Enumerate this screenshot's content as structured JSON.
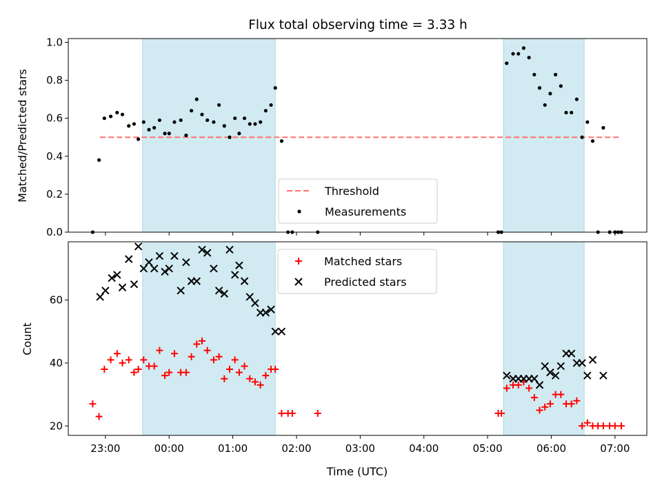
{
  "colors": {
    "span": "#add8e6",
    "threshold": "#ff7070",
    "measurement": "#000000",
    "matched": "#ff0000",
    "predicted": "#000000"
  },
  "chart_data": [
    {
      "type": "scatter",
      "title": "Flux total observing time = 3.33 h",
      "xlabel": "",
      "ylabel": "Matched/Predicted stars",
      "xlim": [
        "22:25",
        "07:30"
      ],
      "ylim": [
        0,
        1.02
      ],
      "yticks": [
        "0.0",
        "0.2",
        "0.4",
        "0.6",
        "0.8",
        "1.0"
      ],
      "xticks": [
        "23:00",
        "00:00",
        "01:00",
        "02:00",
        "03:00",
        "04:00",
        "05:00",
        "06:00",
        "07:00"
      ],
      "x_tick_labels_shown": false,
      "shaded_spans": [
        [
          "23:35",
          "01:40"
        ],
        [
          "05:15",
          "06:31"
        ]
      ],
      "threshold": {
        "name": "Threshold",
        "value": 0.5,
        "x_range": [
          "22:55",
          "07:05"
        ]
      },
      "legend": {
        "position": "lower center",
        "entries": [
          "Threshold",
          "Measurements"
        ]
      },
      "series": [
        {
          "name": "Measurements",
          "points": [
            [
              "22:48",
              0.0
            ],
            [
              "22:54",
              0.38
            ],
            [
              "22:59",
              0.6
            ],
            [
              "23:05",
              0.61
            ],
            [
              "23:11",
              0.63
            ],
            [
              "23:16",
              0.62
            ],
            [
              "23:22",
              0.56
            ],
            [
              "23:27",
              0.57
            ],
            [
              "23:31",
              0.49
            ],
            [
              "23:36",
              0.58
            ],
            [
              "23:41",
              0.54
            ],
            [
              "23:46",
              0.55
            ],
            [
              "23:51",
              0.59
            ],
            [
              "23:56",
              0.52
            ],
            [
              "00:00",
              0.52
            ],
            [
              "00:05",
              0.58
            ],
            [
              "00:11",
              0.59
            ],
            [
              "00:16",
              0.51
            ],
            [
              "00:21",
              0.64
            ],
            [
              "00:26",
              0.7
            ],
            [
              "00:31",
              0.62
            ],
            [
              "00:36",
              0.59
            ],
            [
              "00:42",
              0.58
            ],
            [
              "00:47",
              0.67
            ],
            [
              "00:52",
              0.56
            ],
            [
              "00:57",
              0.5
            ],
            [
              "01:02",
              0.6
            ],
            [
              "01:06",
              0.52
            ],
            [
              "01:11",
              0.6
            ],
            [
              "01:16",
              0.57
            ],
            [
              "01:21",
              0.57
            ],
            [
              "01:26",
              0.58
            ],
            [
              "01:31",
              0.64
            ],
            [
              "01:36",
              0.67
            ],
            [
              "01:40",
              0.76
            ],
            [
              "01:46",
              0.48
            ],
            [
              "01:52",
              0.0
            ],
            [
              "01:56",
              0.0
            ],
            [
              "02:20",
              0.0
            ],
            [
              "05:10",
              0.0
            ],
            [
              "05:13",
              0.0
            ],
            [
              "05:18",
              0.89
            ],
            [
              "05:24",
              0.94
            ],
            [
              "05:29",
              0.94
            ],
            [
              "05:34",
              0.97
            ],
            [
              "05:39",
              0.92
            ],
            [
              "05:44",
              0.83
            ],
            [
              "05:49",
              0.76
            ],
            [
              "05:54",
              0.67
            ],
            [
              "05:59",
              0.73
            ],
            [
              "06:04",
              0.83
            ],
            [
              "06:09",
              0.77
            ],
            [
              "06:14",
              0.63
            ],
            [
              "06:19",
              0.63
            ],
            [
              "06:24",
              0.7
            ],
            [
              "06:29",
              0.5
            ],
            [
              "06:34",
              0.58
            ],
            [
              "06:39",
              0.48
            ],
            [
              "06:44",
              0.0
            ],
            [
              "06:49",
              0.55
            ],
            [
              "06:55",
              0.0
            ],
            [
              "07:00",
              0.0
            ],
            [
              "07:03",
              0.0
            ],
            [
              "07:06",
              0.0
            ]
          ]
        }
      ]
    },
    {
      "type": "scatter",
      "title": "",
      "xlabel": "Time (UTC)",
      "ylabel": "Count",
      "xlim": [
        "22:25",
        "07:30"
      ],
      "ylim": [
        17,
        78.5
      ],
      "yticks": [
        "20",
        "40",
        "60"
      ],
      "xticks": [
        "23:00",
        "00:00",
        "01:00",
        "02:00",
        "03:00",
        "04:00",
        "05:00",
        "06:00",
        "07:00"
      ],
      "shaded_spans": [
        [
          "23:35",
          "01:40"
        ],
        [
          "05:15",
          "06:31"
        ]
      ],
      "legend": {
        "position": "upper center",
        "entries": [
          "Matched stars",
          "Predicted stars"
        ]
      },
      "series": [
        {
          "name": "Matched stars",
          "marker": "+",
          "points": [
            [
              "22:48",
              27
            ],
            [
              "22:54",
              23
            ],
            [
              "22:59",
              38
            ],
            [
              "23:05",
              41
            ],
            [
              "23:11",
              43
            ],
            [
              "23:16",
              40
            ],
            [
              "23:22",
              41
            ],
            [
              "23:27",
              37
            ],
            [
              "23:31",
              38
            ],
            [
              "23:36",
              41
            ],
            [
              "23:41",
              39
            ],
            [
              "23:46",
              39
            ],
            [
              "23:51",
              44
            ],
            [
              "23:56",
              36
            ],
            [
              "00:00",
              37
            ],
            [
              "00:05",
              43
            ],
            [
              "00:11",
              37
            ],
            [
              "00:16",
              37
            ],
            [
              "00:21",
              42
            ],
            [
              "00:26",
              46
            ],
            [
              "00:31",
              47
            ],
            [
              "00:36",
              44
            ],
            [
              "00:42",
              41
            ],
            [
              "00:47",
              42
            ],
            [
              "00:52",
              35
            ],
            [
              "00:57",
              38
            ],
            [
              "01:02",
              41
            ],
            [
              "01:06",
              37
            ],
            [
              "01:11",
              39
            ],
            [
              "01:16",
              35
            ],
            [
              "01:21",
              34
            ],
            [
              "01:26",
              33
            ],
            [
              "01:31",
              36
            ],
            [
              "01:36",
              38
            ],
            [
              "01:40",
              38
            ],
            [
              "01:46",
              24
            ],
            [
              "01:52",
              24
            ],
            [
              "01:56",
              24
            ],
            [
              "02:20",
              24
            ],
            [
              "05:10",
              24
            ],
            [
              "05:13",
              24
            ],
            [
              "05:18",
              32
            ],
            [
              "05:24",
              33
            ],
            [
              "05:29",
              33
            ],
            [
              "05:34",
              34
            ],
            [
              "05:39",
              32
            ],
            [
              "05:44",
              29
            ],
            [
              "05:49",
              25
            ],
            [
              "05:54",
              26
            ],
            [
              "05:59",
              27
            ],
            [
              "06:04",
              30
            ],
            [
              "06:09",
              30
            ],
            [
              "06:14",
              27
            ],
            [
              "06:19",
              27
            ],
            [
              "06:24",
              28
            ],
            [
              "06:29",
              20
            ],
            [
              "06:34",
              21
            ],
            [
              "06:39",
              20
            ],
            [
              "06:44",
              20
            ],
            [
              "06:49",
              20
            ],
            [
              "06:55",
              20
            ],
            [
              "07:00",
              20
            ],
            [
              "07:06",
              20
            ]
          ]
        },
        {
          "name": "Predicted stars",
          "marker": "x",
          "points": [
            [
              "22:55",
              61
            ],
            [
              "23:00",
              63
            ],
            [
              "23:06",
              67
            ],
            [
              "23:11",
              68
            ],
            [
              "23:16",
              64
            ],
            [
              "23:22",
              73
            ],
            [
              "23:27",
              65
            ],
            [
              "23:31",
              77
            ],
            [
              "23:36",
              70
            ],
            [
              "23:41",
              72
            ],
            [
              "23:46",
              70
            ],
            [
              "23:51",
              74
            ],
            [
              "23:56",
              69
            ],
            [
              "00:00",
              70
            ],
            [
              "00:05",
              74
            ],
            [
              "00:11",
              63
            ],
            [
              "00:16",
              72
            ],
            [
              "00:21",
              66
            ],
            [
              "00:26",
              66
            ],
            [
              "00:31",
              76
            ],
            [
              "00:36",
              75
            ],
            [
              "00:42",
              70
            ],
            [
              "00:47",
              63
            ],
            [
              "00:52",
              62
            ],
            [
              "00:57",
              76
            ],
            [
              "01:02",
              68
            ],
            [
              "01:06",
              71
            ],
            [
              "01:11",
              66
            ],
            [
              "01:16",
              61
            ],
            [
              "01:21",
              59
            ],
            [
              "01:26",
              56
            ],
            [
              "01:31",
              56
            ],
            [
              "01:36",
              57
            ],
            [
              "01:40",
              50
            ],
            [
              "01:46",
              50
            ],
            [
              "05:18",
              36
            ],
            [
              "05:24",
              35
            ],
            [
              "05:29",
              35
            ],
            [
              "05:34",
              35
            ],
            [
              "05:39",
              35
            ],
            [
              "05:44",
              35
            ],
            [
              "05:49",
              33
            ],
            [
              "05:54",
              39
            ],
            [
              "05:59",
              37
            ],
            [
              "06:04",
              36
            ],
            [
              "06:09",
              39
            ],
            [
              "06:14",
              43
            ],
            [
              "06:19",
              43
            ],
            [
              "06:24",
              40
            ],
            [
              "06:29",
              40
            ],
            [
              "06:34",
              36
            ],
            [
              "06:39",
              41
            ],
            [
              "06:49",
              36
            ]
          ]
        }
      ]
    }
  ]
}
